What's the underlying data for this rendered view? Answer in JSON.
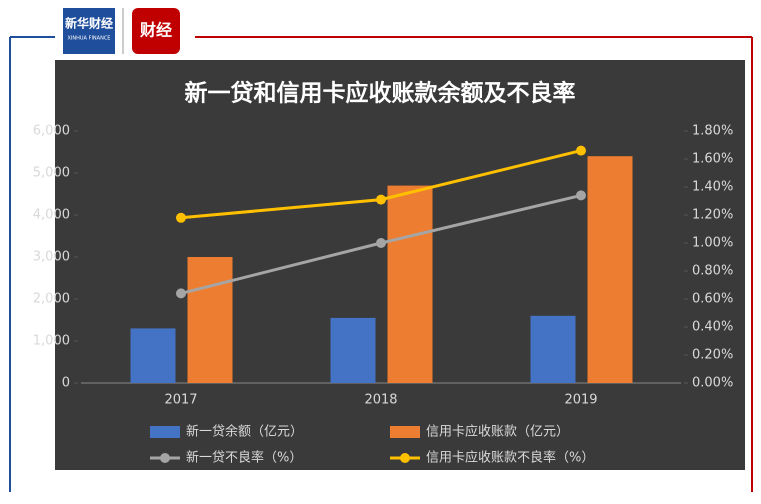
{
  "header": {
    "logo_text": "新华财经",
    "logo_sub": "XINHUA FINANCE",
    "logo2_text": "财经"
  },
  "chart_data": {
    "type": "bar_line",
    "title": "新一贷和信用卡应收账款余额及不良率",
    "categories": [
      "2017",
      "2018",
      "2019"
    ],
    "series": [
      {
        "name": "新一贷余额（亿元）",
        "type": "bar",
        "color": "#4472c4",
        "values": [
          1300,
          1550,
          1600
        ]
      },
      {
        "name": "信用卡应收账款（亿元）",
        "type": "bar",
        "color": "#ed7d31",
        "values": [
          3000,
          4700,
          5400
        ]
      },
      {
        "name": "新一贷不良率（%）",
        "type": "line",
        "axis": "y2",
        "color": "#a5a5a5",
        "values": [
          0.64,
          1.0,
          1.34
        ]
      },
      {
        "name": "信用卡应收账款不良率（%）",
        "type": "line",
        "axis": "y2",
        "color": "#ffc000",
        "values": [
          1.18,
          1.31,
          1.66
        ]
      }
    ],
    "ylim": [
      0,
      6000
    ],
    "yticks": [
      0,
      {
        "value": 1000,
        "label": "1,000"
      },
      {
        "value": 2000,
        "label": "2,000"
      },
      {
        "value": 3000,
        "label": "3,000"
      },
      {
        "value": 4000,
        "label": "4,000"
      },
      {
        "value": 5000,
        "label": "5,000"
      },
      {
        "value": 6000,
        "label": "6,000"
      }
    ],
    "y2lim": [
      0,
      1.8
    ],
    "y2ticks": [
      {
        "value": 0,
        "label": "0.00%"
      },
      {
        "value": 0.2,
        "label": "0.20%"
      },
      {
        "value": 0.4,
        "label": "0.40%"
      },
      {
        "value": 0.6,
        "label": "0.60%"
      },
      {
        "value": 0.8,
        "label": "0.80%"
      },
      {
        "value": 1.0,
        "label": "1.00%"
      },
      {
        "value": 1.2,
        "label": "1.20%"
      },
      {
        "value": 1.4,
        "label": "1.40%"
      },
      {
        "value": 1.6,
        "label": "1.60%"
      },
      {
        "value": 1.8,
        "label": "1.80%"
      }
    ],
    "grid": false
  }
}
